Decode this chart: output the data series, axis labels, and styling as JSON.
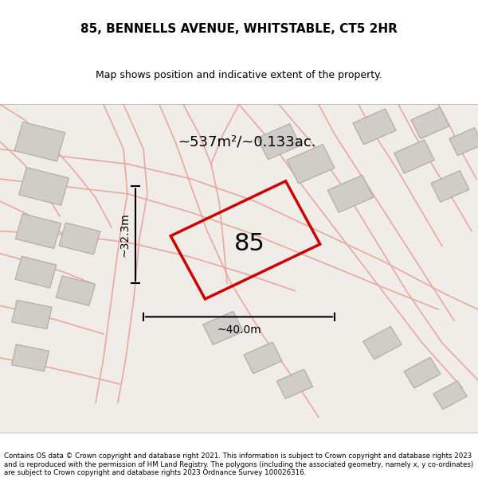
{
  "title": "85, BENNELLS AVENUE, WHITSTABLE, CT5 2HR",
  "subtitle": "Map shows position and indicative extent of the property.",
  "area_text": "~537m²/~0.133ac.",
  "width_text": "~40.0m",
  "height_text": "~32.3m",
  "label": "85",
  "bg_color": "#f5f5f0",
  "map_bg": "#f0ede8",
  "plot_color": "#cc0000",
  "road_color": "#e8c8c0",
  "building_color": "#d8d5d0",
  "footer_text": "Contains OS data © Crown copyright and database right 2021. This information is subject to Crown copyright and database rights 2023 and is reproduced with the permission of HM Land Registry. The polygons (including the associated geometry, namely x, y co-ordinates) are subject to Crown copyright and database rights 2023 Ordnance Survey 100026316.",
  "figsize": [
    6.0,
    6.25
  ],
  "dpi": 100
}
